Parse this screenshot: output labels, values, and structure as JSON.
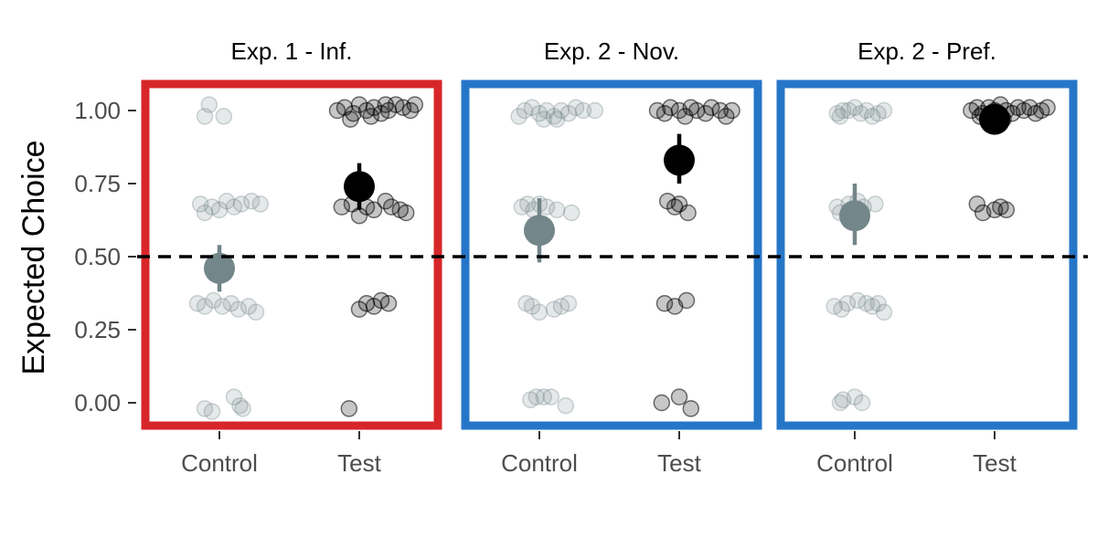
{
  "chart_data": {
    "type": "scatter",
    "ylabel": "Expected Choice",
    "ylim": [
      -0.1,
      1.1
    ],
    "y_ticks": [
      "0.00",
      "0.25",
      "0.50",
      "0.75",
      "1.00"
    ],
    "categories": [
      "Control",
      "Test"
    ],
    "reference_line": {
      "y": 0.5,
      "style": "dashed"
    },
    "colors": {
      "control": "#73868a",
      "test": "#000000"
    },
    "panels": [
      {
        "title": "Exp. 1 - Inf.",
        "frame_color": "#d7262a",
        "means": [
          {
            "category": "Control",
            "mean": 0.46,
            "ci": [
              0.38,
              0.54
            ]
          },
          {
            "category": "Test",
            "mean": 0.74,
            "ci": [
              0.66,
              0.82
            ]
          }
        ],
        "points": {
          "Control": [
            [
              -0.1,
              0.98
            ],
            [
              -0.07,
              1.02
            ],
            [
              0.03,
              0.98
            ],
            [
              -0.13,
              0.68
            ],
            [
              -0.1,
              0.65
            ],
            [
              -0.05,
              0.67
            ],
            [
              0.0,
              0.66
            ],
            [
              0.05,
              0.69
            ],
            [
              0.1,
              0.67
            ],
            [
              0.15,
              0.68
            ],
            [
              0.22,
              0.69
            ],
            [
              0.28,
              0.68
            ],
            [
              -0.15,
              0.34
            ],
            [
              -0.1,
              0.33
            ],
            [
              -0.04,
              0.35
            ],
            [
              0.02,
              0.33
            ],
            [
              0.08,
              0.34
            ],
            [
              0.13,
              0.32
            ],
            [
              0.2,
              0.33
            ],
            [
              0.25,
              0.31
            ],
            [
              -0.1,
              -0.02
            ],
            [
              -0.05,
              -0.03
            ],
            [
              0.1,
              0.02
            ],
            [
              0.14,
              -0.01
            ],
            [
              0.16,
              -0.02
            ]
          ],
          "Test": [
            [
              -0.15,
              1.0
            ],
            [
              -0.1,
              1.01
            ],
            [
              -0.04,
              0.99
            ],
            [
              0.0,
              1.02
            ],
            [
              0.05,
              1.0
            ],
            [
              0.1,
              1.01
            ],
            [
              0.15,
              0.99
            ],
            [
              0.2,
              1.0
            ],
            [
              0.25,
              1.02
            ],
            [
              0.3,
              1.01
            ],
            [
              0.35,
              1.0
            ],
            [
              0.38,
              1.02
            ],
            [
              -0.06,
              0.97
            ],
            [
              0.08,
              0.98
            ],
            [
              0.18,
              1.02
            ],
            [
              -0.12,
              0.67
            ],
            [
              -0.05,
              0.68
            ],
            [
              0.0,
              0.64
            ],
            [
              0.05,
              0.67
            ],
            [
              0.1,
              0.66
            ],
            [
              0.18,
              0.69
            ],
            [
              0.22,
              0.67
            ],
            [
              0.28,
              0.66
            ],
            [
              0.32,
              0.65
            ],
            [
              0.0,
              0.32
            ],
            [
              0.05,
              0.34
            ],
            [
              0.1,
              0.33
            ],
            [
              0.15,
              0.35
            ],
            [
              0.2,
              0.34
            ],
            [
              -0.07,
              -0.02
            ]
          ]
        }
      },
      {
        "title": "Exp. 2 - Nov.",
        "frame_color": "#2676c8",
        "means": [
          {
            "category": "Control",
            "mean": 0.59,
            "ci": [
              0.48,
              0.7
            ]
          },
          {
            "category": "Test",
            "mean": 0.83,
            "ci": [
              0.75,
              0.92
            ]
          }
        ],
        "points": {
          "Control": [
            [
              -0.14,
              0.98
            ],
            [
              -0.1,
              1.0
            ],
            [
              -0.05,
              1.01
            ],
            [
              0.0,
              0.99
            ],
            [
              0.05,
              1.0
            ],
            [
              0.1,
              0.98
            ],
            [
              0.15,
              1.0
            ],
            [
              0.2,
              0.99
            ],
            [
              0.25,
              1.01
            ],
            [
              0.3,
              1.0
            ],
            [
              0.38,
              1.0
            ],
            [
              0.03,
              0.97
            ],
            [
              0.12,
              0.97
            ],
            [
              -0.12,
              0.67
            ],
            [
              -0.08,
              0.68
            ],
            [
              -0.04,
              0.66
            ],
            [
              0.0,
              0.68
            ],
            [
              0.05,
              0.67
            ],
            [
              0.12,
              0.66
            ],
            [
              0.22,
              0.65
            ],
            [
              -0.09,
              0.34
            ],
            [
              -0.05,
              0.33
            ],
            [
              0.0,
              0.31
            ],
            [
              0.1,
              0.32
            ],
            [
              0.15,
              0.33
            ],
            [
              0.2,
              0.34
            ],
            [
              -0.06,
              0.01
            ],
            [
              -0.02,
              0.02
            ],
            [
              0.03,
              0.02
            ],
            [
              0.08,
              0.02
            ],
            [
              0.18,
              -0.01
            ]
          ],
          "Test": [
            [
              -0.15,
              1.0
            ],
            [
              -0.1,
              0.99
            ],
            [
              -0.06,
              1.01
            ],
            [
              0.0,
              1.0
            ],
            [
              0.04,
              0.98
            ],
            [
              0.08,
              1.01
            ],
            [
              0.12,
              1.0
            ],
            [
              0.18,
              0.99
            ],
            [
              0.22,
              1.01
            ],
            [
              0.28,
              1.0
            ],
            [
              0.32,
              0.98
            ],
            [
              0.36,
              1.0
            ],
            [
              -0.08,
              0.69
            ],
            [
              -0.03,
              0.67
            ],
            [
              0.0,
              0.68
            ],
            [
              0.06,
              0.65
            ],
            [
              -0.1,
              0.34
            ],
            [
              -0.03,
              0.33
            ],
            [
              0.05,
              0.35
            ],
            [
              -0.12,
              0.0
            ],
            [
              0.0,
              0.02
            ],
            [
              0.08,
              -0.02
            ]
          ]
        }
      },
      {
        "title": "Exp. 2 - Pref.",
        "frame_color": "#2676c8",
        "means": [
          {
            "category": "Control",
            "mean": 0.64,
            "ci": [
              0.54,
              0.75
            ]
          },
          {
            "category": "Test",
            "mean": 0.97,
            "ci": [
              0.95,
              0.99
            ]
          }
        ],
        "points": {
          "Control": [
            [
              -0.12,
              0.99
            ],
            [
              -0.08,
              1.0
            ],
            [
              -0.04,
              1.0
            ],
            [
              0.0,
              1.01
            ],
            [
              0.04,
              0.99
            ],
            [
              0.08,
              1.0
            ],
            [
              0.12,
              0.98
            ],
            [
              0.16,
              0.99
            ],
            [
              0.2,
              1.0
            ],
            [
              -0.1,
              0.98
            ],
            [
              -0.12,
              0.67
            ],
            [
              -0.1,
              0.65
            ],
            [
              -0.04,
              0.68
            ],
            [
              0.02,
              0.69
            ],
            [
              0.06,
              0.67
            ],
            [
              0.14,
              0.68
            ],
            [
              -0.14,
              0.33
            ],
            [
              -0.09,
              0.32
            ],
            [
              -0.05,
              0.34
            ],
            [
              0.02,
              0.35
            ],
            [
              0.08,
              0.34
            ],
            [
              0.12,
              0.33
            ],
            [
              0.16,
              0.34
            ],
            [
              0.2,
              0.31
            ],
            [
              -0.1,
              0.0
            ],
            [
              -0.08,
              0.01
            ],
            [
              0.0,
              0.02
            ],
            [
              0.05,
              0.0
            ]
          ],
          "Test": [
            [
              -0.16,
              1.0
            ],
            [
              -0.12,
              1.01
            ],
            [
              -0.08,
              0.99
            ],
            [
              -0.04,
              1.01
            ],
            [
              0.0,
              1.0
            ],
            [
              0.04,
              1.02
            ],
            [
              0.08,
              1.0
            ],
            [
              0.12,
              0.99
            ],
            [
              0.16,
              1.01
            ],
            [
              0.2,
              1.0
            ],
            [
              0.24,
              1.01
            ],
            [
              0.28,
              0.99
            ],
            [
              0.32,
              1.0
            ],
            [
              0.36,
              1.01
            ],
            [
              -0.1,
              0.98
            ],
            [
              0.06,
              0.97
            ],
            [
              -0.12,
              0.68
            ],
            [
              -0.08,
              0.65
            ],
            [
              0.0,
              0.66
            ],
            [
              0.04,
              0.67
            ],
            [
              0.08,
              0.66
            ]
          ]
        }
      }
    ]
  }
}
